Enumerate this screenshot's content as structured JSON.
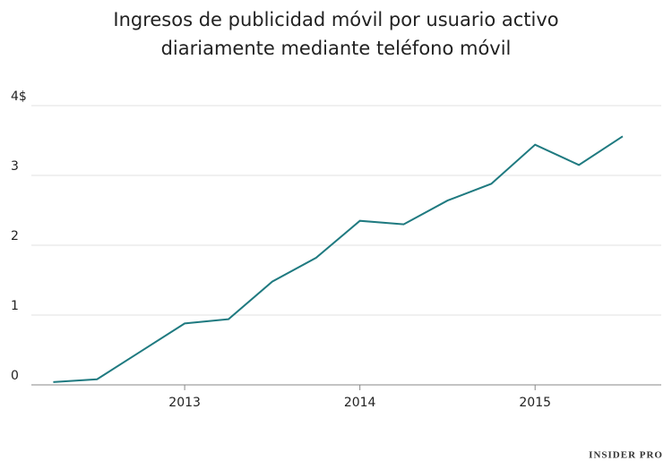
{
  "chart_data": {
    "type": "line",
    "title": [
      "Ingresos de publicidad móvil por usuario activo",
      "diariamente mediante teléfono móvil"
    ],
    "x": [
      2012.25,
      2012.5,
      2012.75,
      2013,
      2013.25,
      2013.5,
      2013.75,
      2014,
      2014.25,
      2014.5,
      2014.75,
      2015,
      2015.25,
      2015.5
    ],
    "series": [
      {
        "color": "#1f7a80",
        "values": [
          0.04,
          0.08,
          0.48,
          0.88,
          0.94,
          1.48,
          1.82,
          2.35,
          2.3,
          2.64,
          2.88,
          3.44,
          3.15,
          3.56
        ]
      }
    ],
    "xlim": [
      2012.125,
      2015.72
    ],
    "xticks": [
      2013,
      2014,
      2015
    ],
    "ylim": [
      0,
      4
    ],
    "yticks": [
      0,
      1,
      2,
      3,
      {
        "value": 4,
        "label": "4$"
      }
    ],
    "grid": true,
    "brand": "INSIDER PRO"
  }
}
